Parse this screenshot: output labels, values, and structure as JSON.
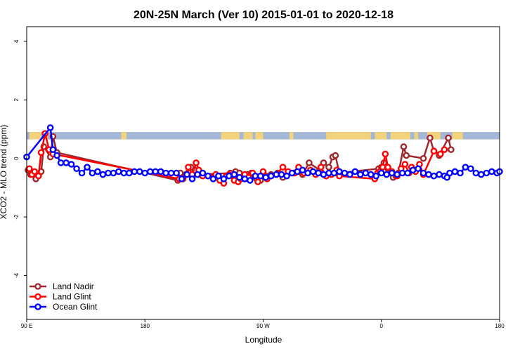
{
  "chart_data": {
    "type": "line",
    "title": "20N-25N March (Ver 10)   2015-01-01 to 2020-12-18",
    "xlabel": "Longitude",
    "ylabel": "XCO2 - MLO trend (ppm)",
    "xlim": [
      90,
      450
    ],
    "ylim": [
      -5.5,
      4.5
    ],
    "x_ticks": [
      {
        "value": 90,
        "label": "90 E"
      },
      {
        "value": 180,
        "label": "180"
      },
      {
        "value": 270,
        "label": "90 W"
      },
      {
        "value": 360,
        "label": "0"
      },
      {
        "value": 450,
        "label": "180"
      }
    ],
    "y_ticks": [
      {
        "value": -4,
        "label": "-4"
      },
      {
        "value": -2,
        "label": "-2"
      },
      {
        "value": 0,
        "label": "0"
      },
      {
        "value": 2,
        "label": "2"
      },
      {
        "value": 4,
        "label": "4"
      }
    ],
    "grid": false,
    "legend_position": "bottom-left",
    "band": {
      "y_min": 0.65,
      "y_max": 0.9,
      "ocean_color": "#a3b8d6",
      "land_color": "#f2d27a"
    },
    "series": [
      {
        "name": "Land Nadir",
        "color": "#a0282c",
        "x": [
          91,
          93,
          97,
          101,
          103,
          108,
          110,
          113,
          205,
          207,
          211,
          215,
          218,
          221,
          245,
          247,
          249,
          252,
          258,
          261,
          265,
          268,
          272,
          276,
          281,
          285,
          293,
          298,
          300,
          305,
          313,
          316,
          320,
          323,
          325,
          328,
          358,
          360,
          362,
          363,
          365,
          369,
          371,
          373,
          377,
          379,
          392,
          397,
          400,
          404,
          411,
          413
        ],
        "y": [
          -0.4,
          -0.55,
          -0.7,
          -0.45,
          0.4,
          0.05,
          0.75,
          0.2,
          -0.75,
          -0.5,
          -0.55,
          -0.3,
          -0.4,
          -0.55,
          -0.5,
          -0.6,
          -0.45,
          -0.5,
          -0.55,
          -0.5,
          -0.7,
          -0.75,
          -0.6,
          -0.55,
          -0.5,
          -0.65,
          -0.5,
          -0.45,
          -0.55,
          -0.15,
          -0.4,
          -0.15,
          -0.3,
          0.05,
          0.1,
          -0.5,
          -0.35,
          -0.3,
          -0.15,
          -0.4,
          -0.35,
          -0.65,
          -0.6,
          -0.5,
          0.4,
          0.1,
          0.0,
          0.7,
          0.25,
          0.1,
          0.7,
          0.3
        ]
      },
      {
        "name": "Land Glint",
        "color": "#ff0000",
        "x": [
          92,
          94,
          96,
          99,
          101,
          104,
          107,
          110,
          206,
          209,
          213,
          216,
          219,
          221,
          224,
          232,
          234,
          237,
          240,
          242,
          244,
          248,
          251,
          253,
          256,
          259,
          262,
          266,
          270,
          273,
          276,
          280,
          285,
          289,
          294,
          297,
          301,
          306,
          310,
          314,
          318,
          322,
          326,
          328,
          355,
          357,
          359,
          361,
          363,
          365,
          368,
          372,
          375,
          378,
          381,
          383,
          386,
          389,
          392,
          400,
          405,
          408
        ],
        "y": [
          -0.35,
          -0.55,
          -0.45,
          -0.6,
          0.2,
          0.85,
          0.3,
          0.15,
          -0.7,
          -0.7,
          -0.3,
          -0.55,
          -0.15,
          -0.4,
          -0.6,
          -0.65,
          -0.55,
          -0.75,
          -0.85,
          -0.6,
          -0.55,
          -0.75,
          -0.8,
          -0.7,
          -0.55,
          -0.65,
          -0.5,
          -0.8,
          -0.45,
          -0.7,
          -0.6,
          -0.55,
          -0.3,
          -0.45,
          -0.5,
          -0.3,
          -0.5,
          -0.4,
          -0.55,
          -0.3,
          -0.6,
          -0.55,
          -0.4,
          -0.6,
          -0.7,
          -0.5,
          -0.45,
          -0.3,
          0.15,
          -0.3,
          -0.45,
          -0.6,
          -0.35,
          -0.2,
          -0.5,
          -0.3,
          -0.45,
          -0.2,
          -0.55,
          0.25,
          0.15,
          0.3
        ]
      },
      {
        "name": "Ocean Glint",
        "color": "#0000ff",
        "x": [
          90,
          108,
          110,
          113,
          116,
          120,
          124,
          128,
          132,
          136,
          140,
          144,
          148,
          152,
          156,
          160,
          164,
          168,
          172,
          176,
          180,
          184,
          188,
          192,
          196,
          200,
          204,
          208,
          212,
          216,
          220,
          224,
          228,
          232,
          236,
          240,
          244,
          248,
          252,
          256,
          260,
          264,
          268,
          272,
          276,
          280,
          284,
          288,
          292,
          296,
          300,
          304,
          308,
          312,
          316,
          320,
          324,
          328,
          332,
          336,
          340,
          344,
          348,
          352,
          356,
          360,
          364,
          368,
          372,
          376,
          380,
          384,
          388,
          392,
          396,
          400,
          404,
          408,
          410,
          412,
          416,
          420,
          424,
          428,
          432,
          436,
          440,
          444,
          448,
          450
        ],
        "y": [
          0.05,
          1.05,
          0.3,
          0.1,
          -0.15,
          -0.15,
          -0.2,
          -0.35,
          -0.5,
          -0.3,
          -0.5,
          -0.45,
          -0.55,
          -0.5,
          -0.5,
          -0.45,
          -0.5,
          -0.5,
          -0.45,
          -0.45,
          -0.5,
          -0.45,
          -0.45,
          -0.45,
          -0.5,
          -0.5,
          -0.5,
          -0.7,
          -0.55,
          -0.7,
          -0.55,
          -0.5,
          -0.6,
          -0.7,
          -0.6,
          -0.7,
          -0.6,
          -0.55,
          -0.65,
          -0.7,
          -0.75,
          -0.6,
          -0.6,
          -0.65,
          -0.6,
          -0.55,
          -0.55,
          -0.6,
          -0.5,
          -0.45,
          -0.4,
          -0.5,
          -0.45,
          -0.5,
          -0.55,
          -0.5,
          -0.5,
          -0.45,
          -0.5,
          -0.55,
          -0.45,
          -0.55,
          -0.5,
          -0.55,
          -0.6,
          -0.5,
          -0.55,
          -0.5,
          -0.55,
          -0.5,
          -0.5,
          -0.4,
          -0.35,
          -0.5,
          -0.55,
          -0.6,
          -0.55,
          -0.6,
          -0.65,
          -0.5,
          -0.45,
          -0.5,
          -0.3,
          -0.35,
          -0.5,
          -0.55,
          -0.5,
          -0.45,
          -0.5,
          -0.45
        ]
      }
    ]
  }
}
